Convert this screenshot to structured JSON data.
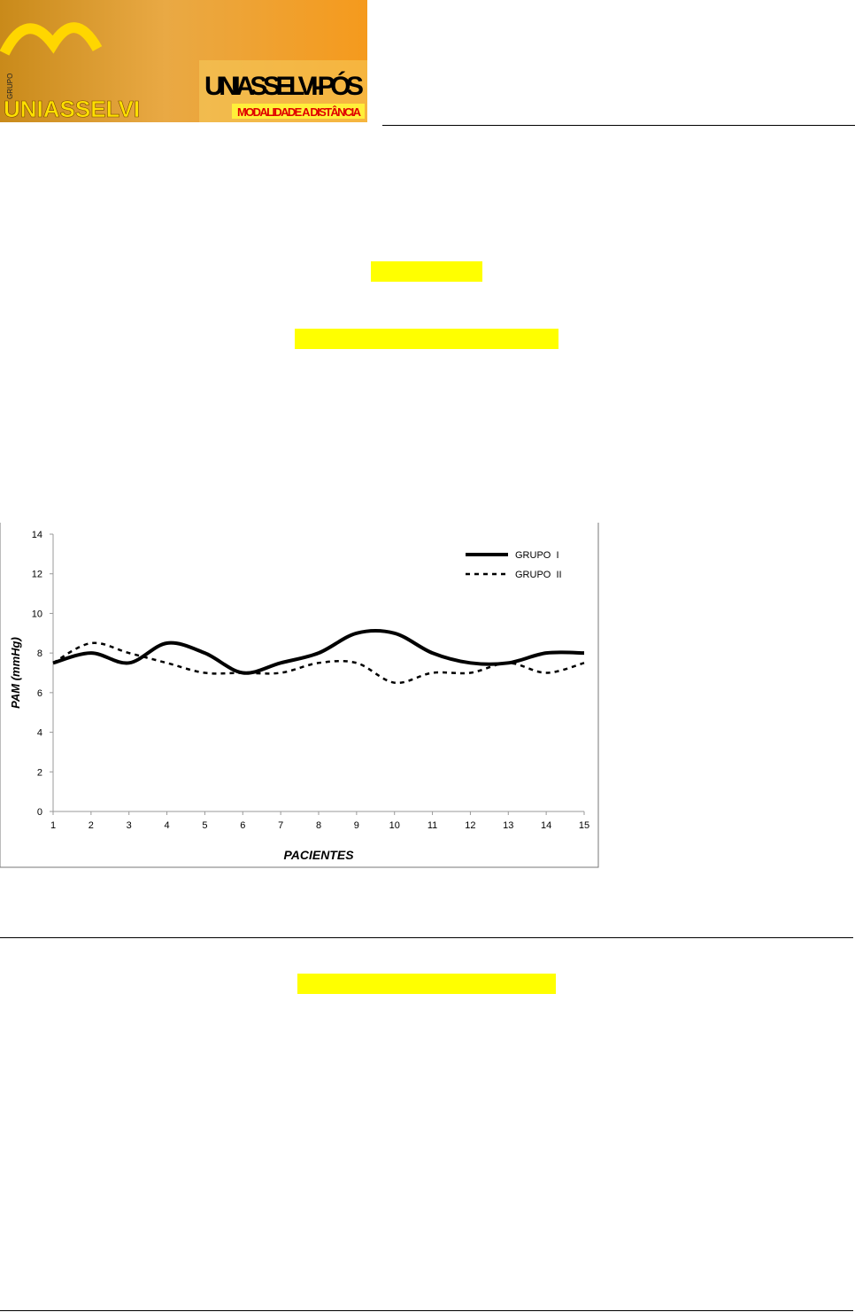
{
  "header": {
    "logo_group": "GRUPO",
    "logo_brand": "UNIASSELVI",
    "logo_title": "UNIASSELVI-PÓS",
    "logo_subtitle": "MODALIDADE A DISTÂNCIA"
  },
  "chart_data": {
    "type": "line",
    "x_label": "PACIENTES",
    "y_label": "PAM (mmHg)",
    "x": [
      1,
      2,
      3,
      4,
      5,
      6,
      7,
      8,
      9,
      10,
      11,
      12,
      13,
      14,
      15
    ],
    "xlim": [
      1,
      15
    ],
    "xticks": [
      1,
      2,
      3,
      4,
      5,
      6,
      7,
      8,
      9,
      10,
      11,
      12,
      13,
      14,
      15
    ],
    "ylim": [
      0,
      14
    ],
    "yticks": [
      0,
      2,
      4,
      6,
      8,
      10,
      12,
      14
    ],
    "legend": "upper right",
    "series": [
      {
        "name": "GRUPO  I",
        "color": "#000000",
        "style": "solid",
        "values": [
          7.5,
          8,
          7.5,
          8.5,
          8,
          7,
          7.5,
          8,
          9,
          9,
          8,
          7.5,
          7.5,
          8,
          8
        ]
      },
      {
        "name": "GRUPO  II",
        "color": "#000000",
        "style": "dashed",
        "values": [
          7.5,
          8.5,
          8,
          7.5,
          7,
          7,
          7,
          7.5,
          7.5,
          6.5,
          7,
          7,
          7.5,
          7,
          7.5
        ]
      }
    ]
  }
}
